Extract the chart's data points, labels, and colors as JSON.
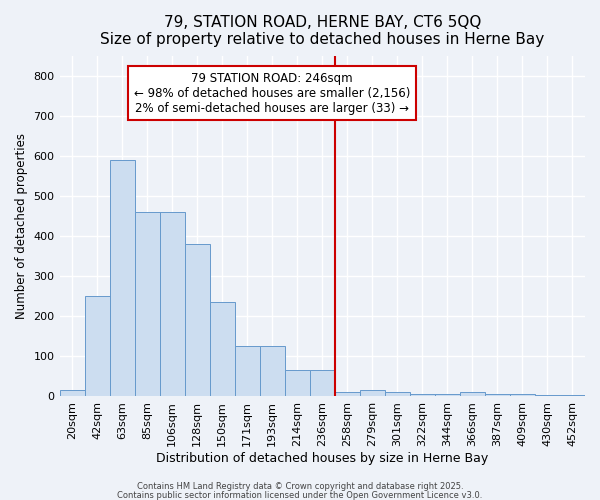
{
  "title": "79, STATION ROAD, HERNE BAY, CT6 5QQ",
  "subtitle": "Size of property relative to detached houses in Herne Bay",
  "xlabel": "Distribution of detached houses by size in Herne Bay",
  "ylabel": "Number of detached properties",
  "bin_labels": [
    "20sqm",
    "42sqm",
    "63sqm",
    "85sqm",
    "106sqm",
    "128sqm",
    "150sqm",
    "171sqm",
    "193sqm",
    "214sqm",
    "236sqm",
    "258sqm",
    "279sqm",
    "301sqm",
    "322sqm",
    "344sqm",
    "366sqm",
    "387sqm",
    "409sqm",
    "430sqm",
    "452sqm"
  ],
  "bar_heights": [
    15,
    250,
    590,
    460,
    460,
    380,
    235,
    125,
    125,
    65,
    65,
    10,
    15,
    10,
    5,
    5,
    10,
    5,
    5,
    3,
    3
  ],
  "bar_color": "#ccddf0",
  "bar_edge_color": "#6699cc",
  "bg_color": "#eef2f8",
  "grid_color": "#ffffff",
  "vline_x": 10.5,
  "vline_color": "#cc0000",
  "annotation_text": "79 STATION ROAD: 246sqm\n← 98% of detached houses are smaller (2,156)\n2% of semi-detached houses are larger (33) →",
  "annotation_box_color": "#ffffff",
  "annotation_box_edge_color": "#cc0000",
  "footer1": "Contains HM Land Registry data © Crown copyright and database right 2025.",
  "footer2": "Contains public sector information licensed under the Open Government Licence v3.0.",
  "ylim": [
    0,
    850
  ],
  "yticks": [
    0,
    100,
    200,
    300,
    400,
    500,
    600,
    700,
    800
  ],
  "title_fontsize": 11,
  "subtitle_fontsize": 9.5,
  "xlabel_fontsize": 9,
  "ylabel_fontsize": 8.5,
  "tick_fontsize": 8,
  "annotation_fontsize": 8.5,
  "footer_fontsize": 6
}
